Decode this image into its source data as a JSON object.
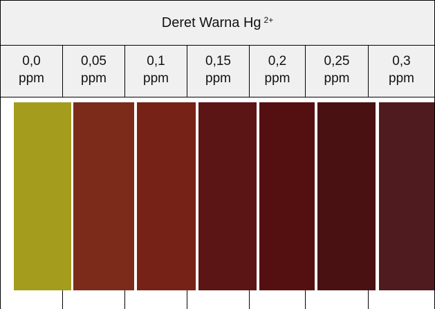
{
  "header": {
    "title": "Deret Warna Hg",
    "superscript": "2+"
  },
  "columns": [
    {
      "value": "0,0",
      "unit": "ppm",
      "swatch_color": "#a49c1c"
    },
    {
      "value": "0,05",
      "unit": "ppm",
      "swatch_color": "#7c2a1a"
    },
    {
      "value": "0,1",
      "unit": "ppm",
      "swatch_color": "#772216"
    },
    {
      "value": "0,15",
      "unit": "ppm",
      "swatch_color": "#5c1515"
    },
    {
      "value": "0,2",
      "unit": "ppm",
      "swatch_color": "#541011"
    },
    {
      "value": "0,25",
      "unit": "ppm",
      "swatch_color": "#4a1113"
    },
    {
      "value": "0,3",
      "unit": "ppm",
      "swatch_color": "#4f1b1f"
    }
  ]
}
